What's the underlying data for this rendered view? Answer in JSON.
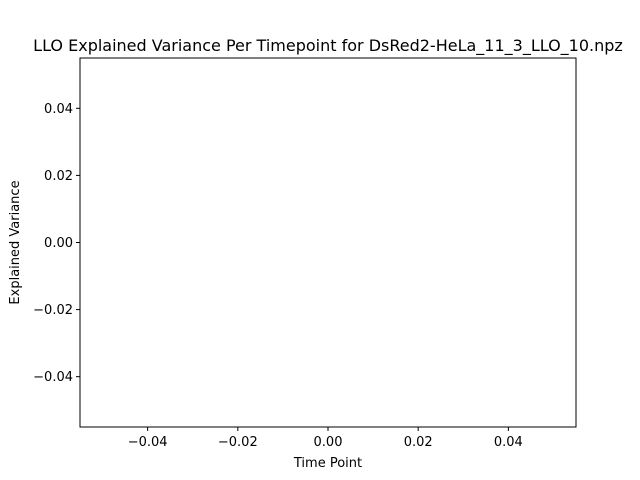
{
  "chart_data": {
    "type": "line",
    "title": "LLO Explained Variance Per Timepoint for DsRed2-HeLa_11_3_LLO_10.npz",
    "xlabel": "Time Point",
    "ylabel": "Explained Variance",
    "xlim": [
      -0.055,
      0.055
    ],
    "ylim": [
      -0.055,
      0.055
    ],
    "x_ticks": [
      -0.04,
      -0.02,
      0.0,
      0.02,
      0.04
    ],
    "x_tick_labels": [
      "−0.04",
      "−0.02",
      "0.00",
      "0.02",
      "0.04"
    ],
    "y_ticks": [
      -0.04,
      -0.02,
      0.0,
      0.02,
      0.04
    ],
    "y_tick_labels": [
      "−0.04",
      "−0.02",
      "0.00",
      "0.02",
      "0.04"
    ],
    "series": [],
    "grid": false,
    "legend": "none"
  }
}
